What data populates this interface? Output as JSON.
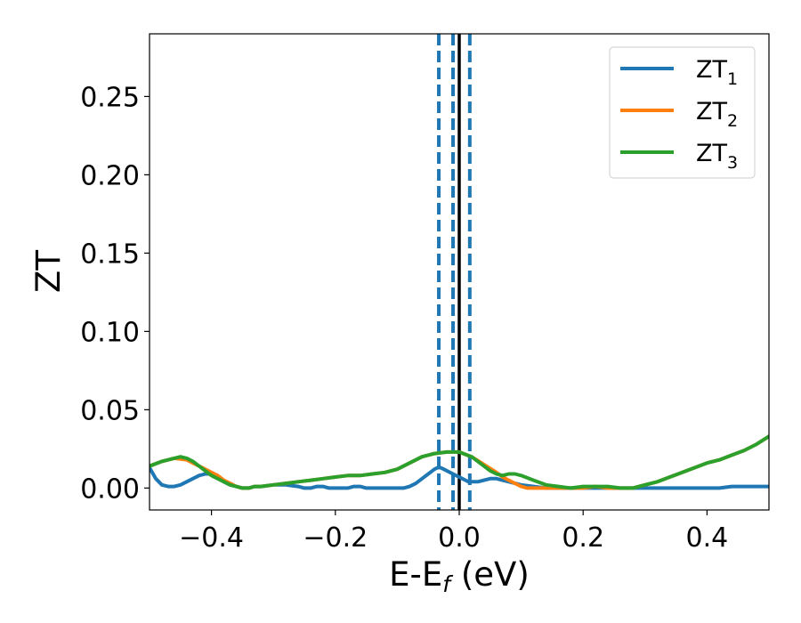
{
  "chart_data": {
    "type": "line",
    "title": "",
    "xlabel": {
      "main": "E-E",
      "sub": "f",
      "suffix": " (eV)"
    },
    "ylabel": "ZT",
    "xlim": [
      -0.5,
      0.5
    ],
    "ylim": [
      -0.014,
      0.29
    ],
    "xticks": [
      -0.4,
      -0.2,
      0.0,
      0.2,
      0.4
    ],
    "xtick_labels": [
      "−0.4",
      "−0.2",
      "0.0",
      "0.2",
      "0.4"
    ],
    "yticks": [
      0.0,
      0.05,
      0.1,
      0.15,
      0.2,
      0.25
    ],
    "ytick_labels": [
      "0.00",
      "0.05",
      "0.10",
      "0.15",
      "0.20",
      "0.25"
    ],
    "grid": false,
    "legend_position": "top-right",
    "series": [
      {
        "name": "ZT",
        "sub": "1",
        "color": "#1f77b4",
        "x": [
          -0.5,
          -0.49,
          -0.48,
          -0.47,
          -0.46,
          -0.45,
          -0.44,
          -0.43,
          -0.42,
          -0.41,
          -0.4,
          -0.39,
          -0.38,
          -0.37,
          -0.36,
          -0.35,
          -0.34,
          -0.33,
          -0.32,
          -0.3,
          -0.28,
          -0.26,
          -0.25,
          -0.24,
          -0.23,
          -0.22,
          -0.21,
          -0.2,
          -0.19,
          -0.18,
          -0.17,
          -0.16,
          -0.15,
          -0.14,
          -0.12,
          -0.1,
          -0.09,
          -0.08,
          -0.07,
          -0.06,
          -0.05,
          -0.04,
          -0.035,
          -0.03,
          -0.025,
          -0.02,
          -0.015,
          -0.01,
          -0.005,
          0.0,
          0.005,
          0.01,
          0.015,
          0.02,
          0.025,
          0.03,
          0.04,
          0.05,
          0.06,
          0.07,
          0.08,
          0.09,
          0.1,
          0.12,
          0.14,
          0.16,
          0.18,
          0.2,
          0.22,
          0.24,
          0.26,
          0.28,
          0.3,
          0.32,
          0.34,
          0.36,
          0.38,
          0.4,
          0.42,
          0.44,
          0.46,
          0.48,
          0.5
        ],
        "y": [
          0.013,
          0.006,
          0.002,
          0.001,
          0.001,
          0.002,
          0.004,
          0.006,
          0.008,
          0.009,
          0.009,
          0.007,
          0.004,
          0.002,
          0.001,
          0.0,
          0.0,
          0.001,
          0.001,
          0.002,
          0.002,
          0.001,
          0.0,
          0.0,
          0.001,
          0.001,
          0.0,
          0.0,
          0.0,
          0.0,
          0.001,
          0.001,
          0.0,
          0.0,
          0.0,
          0.0,
          0.0,
          0.001,
          0.003,
          0.006,
          0.009,
          0.012,
          0.013,
          0.013,
          0.012,
          0.011,
          0.01,
          0.009,
          0.008,
          0.007,
          0.006,
          0.005,
          0.004,
          0.004,
          0.004,
          0.004,
          0.005,
          0.006,
          0.006,
          0.005,
          0.004,
          0.003,
          0.002,
          0.001,
          0.0,
          0.0,
          0.0,
          0.0,
          0.0,
          0.0,
          0.0,
          0.0,
          0.0,
          0.0,
          0.0,
          0.0,
          0.0,
          0.0,
          0.0,
          0.001,
          0.001,
          0.001,
          0.001
        ]
      },
      {
        "name": "ZT",
        "sub": "2",
        "color": "#ff7f0e",
        "x": [
          -0.5,
          -0.48,
          -0.46,
          -0.44,
          -0.42,
          -0.4,
          -0.39,
          -0.38,
          -0.37,
          -0.36,
          -0.35,
          -0.34,
          -0.33,
          -0.32,
          -0.3,
          -0.28,
          -0.26,
          -0.24,
          -0.22,
          -0.2,
          -0.18,
          -0.16,
          -0.14,
          -0.12,
          -0.1,
          -0.08,
          -0.06,
          -0.04,
          -0.02,
          0.0,
          0.02,
          0.04,
          0.06,
          0.07,
          0.08,
          0.09,
          0.1,
          0.11,
          0.12,
          0.13,
          0.14,
          0.16,
          0.18,
          0.2,
          0.22,
          0.24,
          0.26,
          0.28,
          0.3,
          0.32,
          0.34,
          0.36,
          0.38,
          0.4,
          0.42,
          0.44,
          0.46,
          0.48,
          0.5
        ],
        "y": [
          0.014,
          0.017,
          0.019,
          0.018,
          0.014,
          0.01,
          0.008,
          0.005,
          0.003,
          0.001,
          0.0,
          0.0,
          0.001,
          0.001,
          0.002,
          0.003,
          0.004,
          0.005,
          0.006,
          0.007,
          0.008,
          0.008,
          0.009,
          0.01,
          0.012,
          0.016,
          0.02,
          0.022,
          0.023,
          0.023,
          0.02,
          0.015,
          0.01,
          0.007,
          0.005,
          0.003,
          0.001,
          0.0,
          0.0,
          0.0,
          0.0,
          0.0,
          0.0,
          0.0,
          0.001,
          0.0,
          0.0,
          0.0,
          0.002,
          0.004,
          0.007,
          0.01,
          0.013,
          0.016,
          0.018,
          0.021,
          0.024,
          0.028,
          0.033
        ]
      },
      {
        "name": "ZT",
        "sub": "3",
        "color": "#2ca02c",
        "x": [
          -0.5,
          -0.48,
          -0.46,
          -0.45,
          -0.44,
          -0.43,
          -0.42,
          -0.41,
          -0.4,
          -0.39,
          -0.38,
          -0.37,
          -0.36,
          -0.35,
          -0.34,
          -0.33,
          -0.32,
          -0.3,
          -0.28,
          -0.26,
          -0.24,
          -0.22,
          -0.2,
          -0.18,
          -0.16,
          -0.14,
          -0.12,
          -0.1,
          -0.08,
          -0.06,
          -0.04,
          -0.02,
          0.0,
          0.02,
          0.04,
          0.05,
          0.06,
          0.07,
          0.08,
          0.09,
          0.1,
          0.12,
          0.14,
          0.16,
          0.18,
          0.2,
          0.22,
          0.24,
          0.26,
          0.28,
          0.3,
          0.32,
          0.34,
          0.36,
          0.38,
          0.4,
          0.42,
          0.44,
          0.46,
          0.48,
          0.5
        ],
        "y": [
          0.014,
          0.017,
          0.019,
          0.02,
          0.019,
          0.017,
          0.014,
          0.011,
          0.008,
          0.006,
          0.004,
          0.002,
          0.001,
          0.0,
          0.0,
          0.001,
          0.001,
          0.002,
          0.003,
          0.004,
          0.005,
          0.006,
          0.007,
          0.008,
          0.008,
          0.009,
          0.01,
          0.012,
          0.016,
          0.02,
          0.022,
          0.023,
          0.023,
          0.02,
          0.014,
          0.011,
          0.009,
          0.008,
          0.009,
          0.009,
          0.008,
          0.005,
          0.002,
          0.001,
          0.0,
          0.001,
          0.001,
          0.001,
          0.0,
          0.0,
          0.002,
          0.004,
          0.007,
          0.01,
          0.013,
          0.016,
          0.018,
          0.021,
          0.024,
          0.028,
          0.033
        ]
      }
    ],
    "vertical_lines": [
      {
        "x": 0.0,
        "style": "solid",
        "color": "#000000"
      },
      {
        "x": -0.033,
        "style": "dashed",
        "color": "#1f77b4"
      },
      {
        "x": -0.01,
        "style": "dashed",
        "color": "#1f77b4"
      },
      {
        "x": 0.017,
        "style": "dashed",
        "color": "#1f77b4"
      }
    ]
  }
}
